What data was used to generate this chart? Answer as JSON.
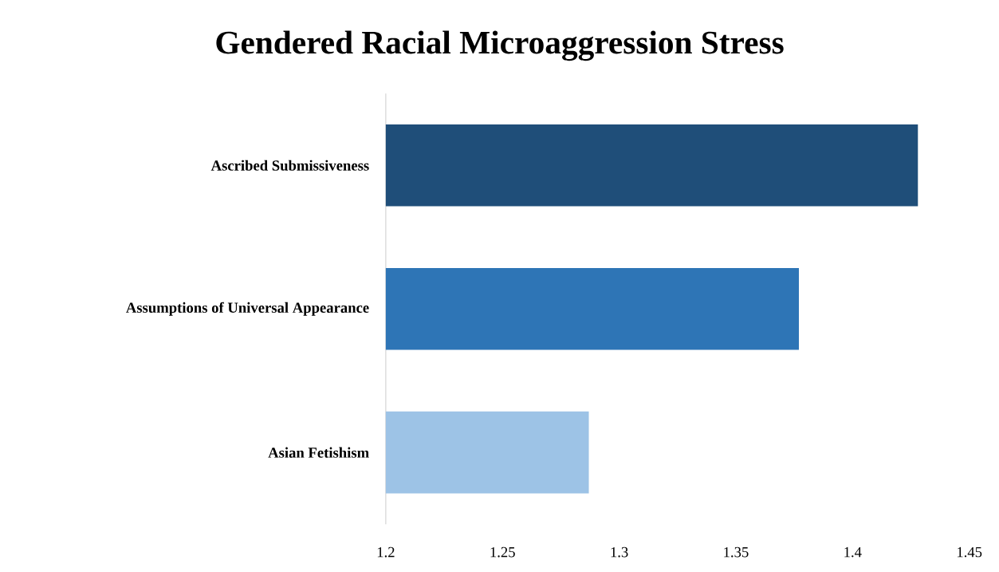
{
  "chart_data": {
    "type": "bar",
    "orientation": "horizontal",
    "title": "Gendered Racial Microaggression Stress",
    "categories": [
      "Ascribed Submissiveness",
      "Assumptions of Universal Appearance",
      "Asian Fetishism"
    ],
    "values": [
      1.428,
      1.377,
      1.287
    ],
    "colors": [
      "#1f4e79",
      "#2e75b6",
      "#9dc3e6"
    ],
    "xlim": [
      1.2,
      1.45
    ],
    "xticks": [
      1.2,
      1.25,
      1.3,
      1.35,
      1.4,
      1.45
    ]
  }
}
